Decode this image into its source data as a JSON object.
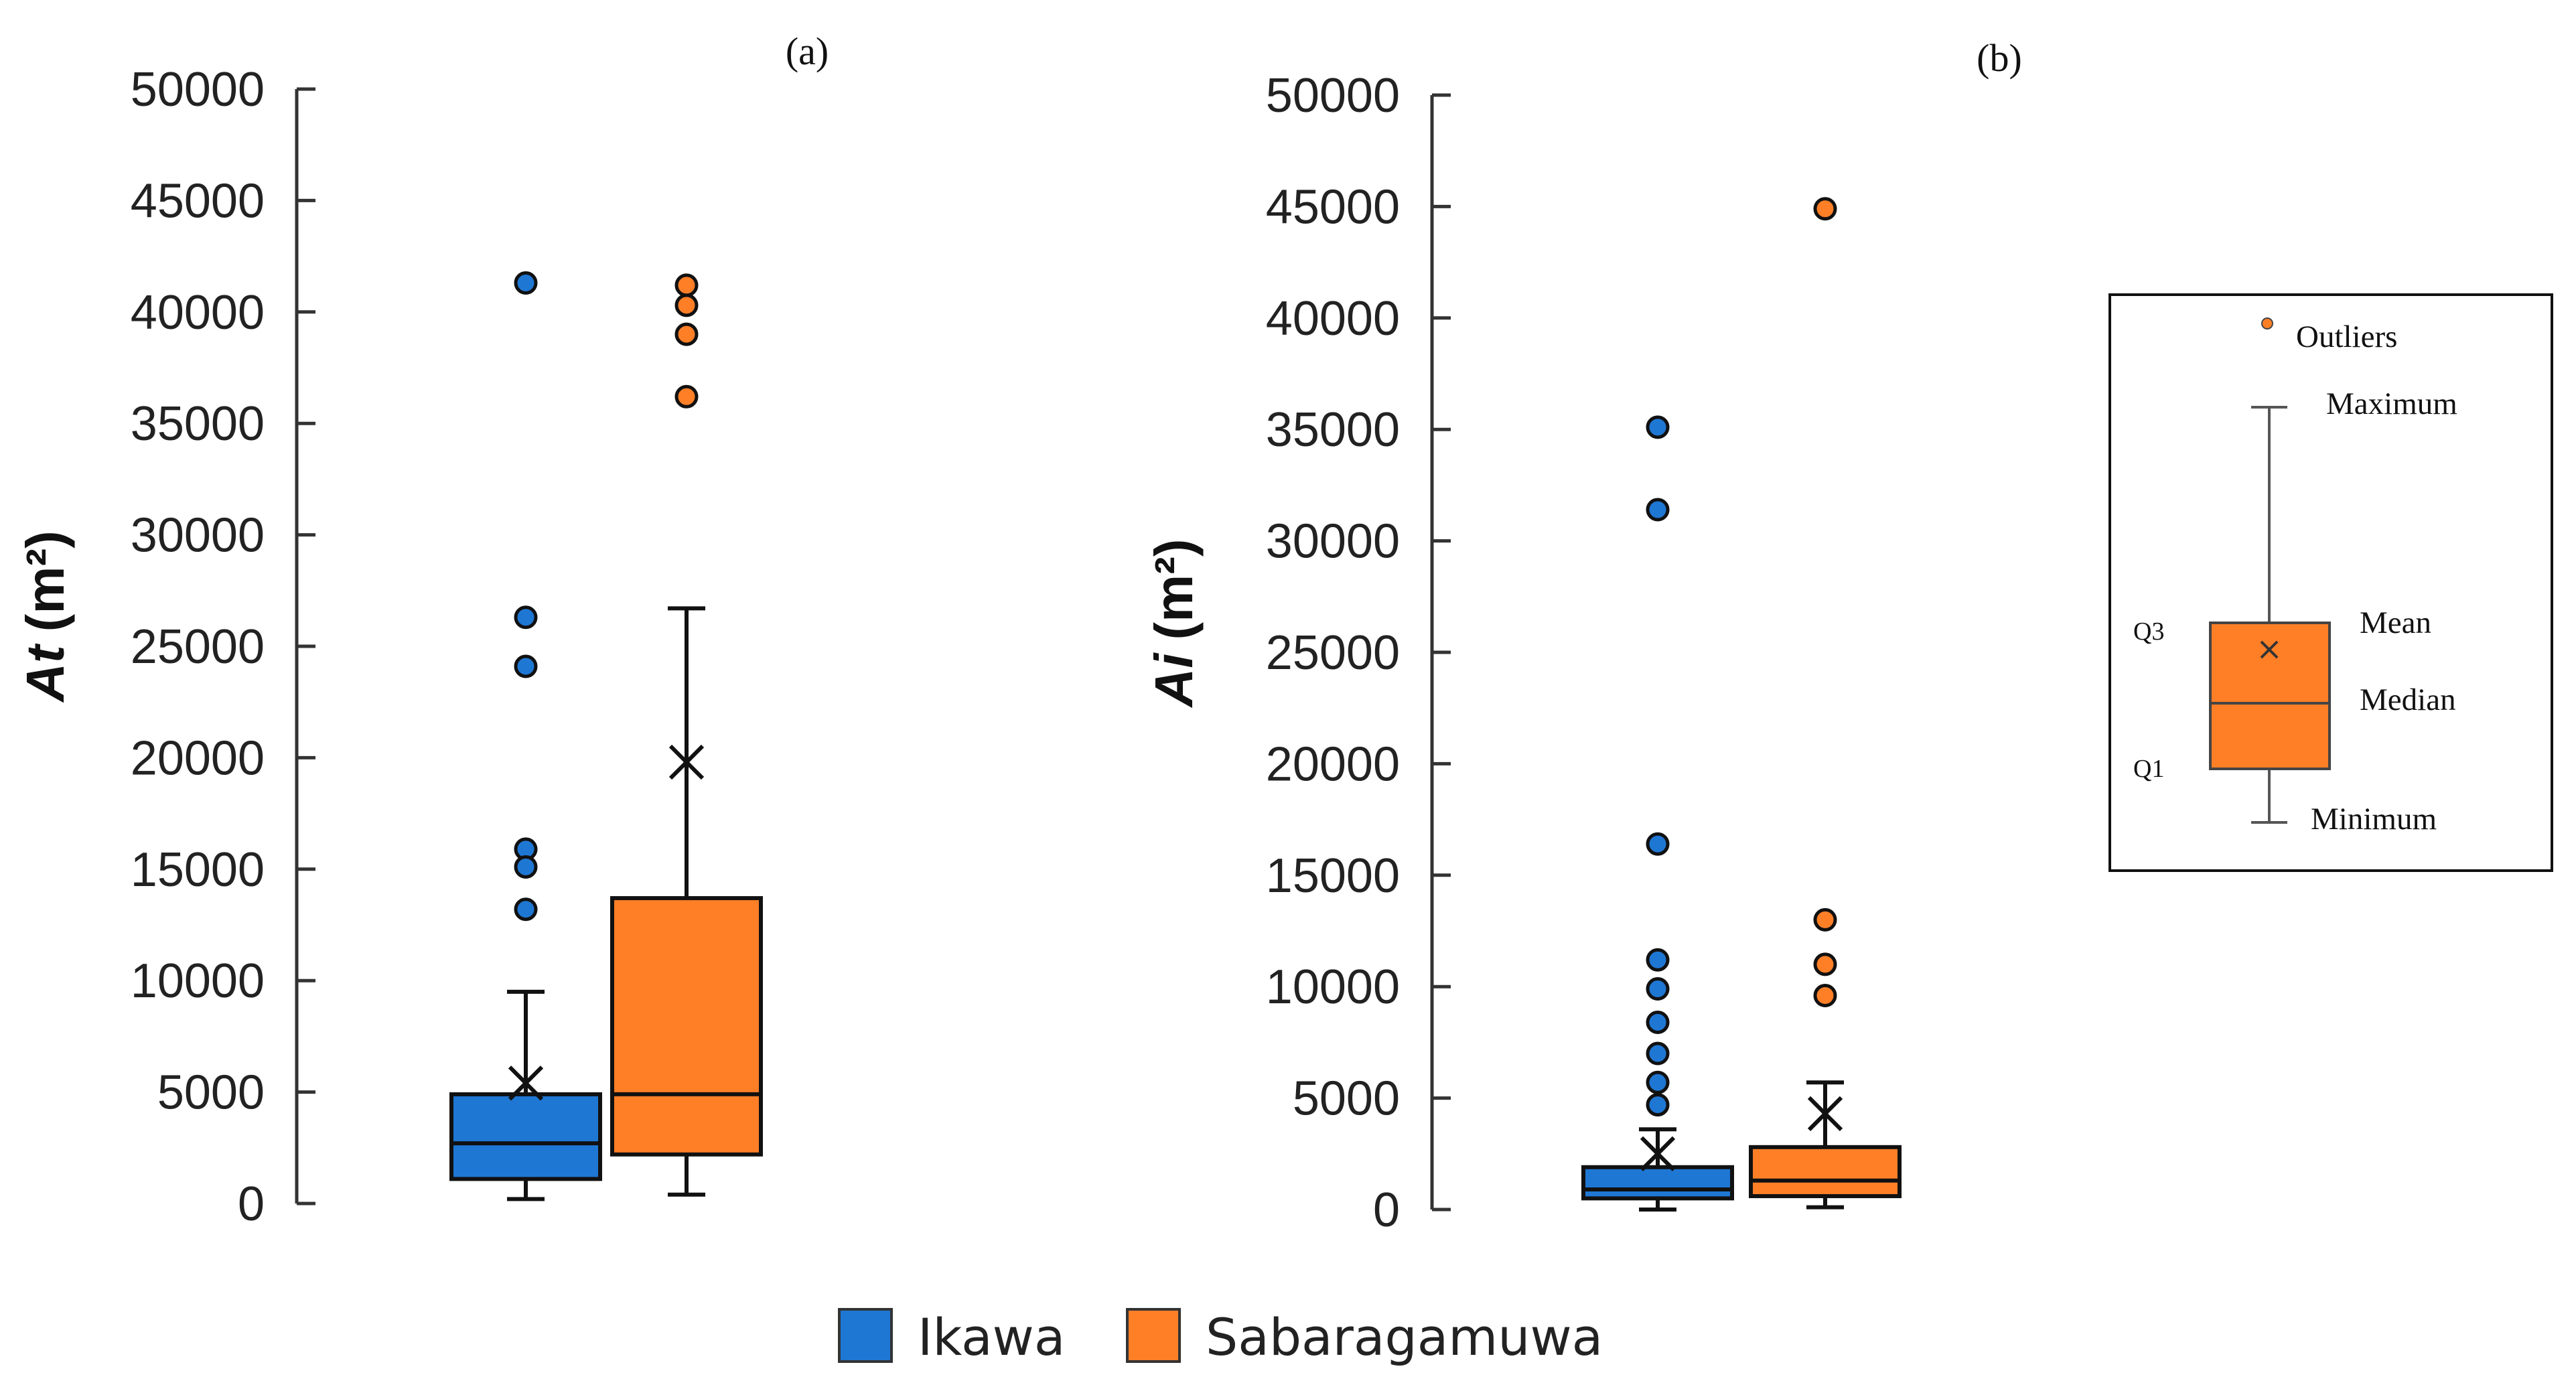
{
  "chart_data": [
    {
      "type": "box",
      "panel": "(a)",
      "ylabel": "At (m²)",
      "ylabel_main": "At",
      "ylabel_unit": "(m²)",
      "ylim": [
        0,
        50000
      ],
      "yticks": [
        0,
        5000,
        10000,
        15000,
        20000,
        25000,
        30000,
        35000,
        40000,
        45000,
        50000
      ],
      "ytick_labels": [
        "0",
        "5000",
        "10000",
        "15000",
        "20000",
        "25000",
        "30000",
        "35000",
        "40000",
        "45000",
        "50000"
      ],
      "series": [
        {
          "name": "Ikawa",
          "min": 200,
          "q1": 1100,
          "median": 2700,
          "q3": 4900,
          "max": 9500,
          "mean": 5400,
          "outliers": [
            41300,
            26300,
            24100,
            15900,
            15100,
            13200
          ]
        },
        {
          "name": "Sabaragamuwa",
          "min": 400,
          "q1": 2200,
          "median": 4900,
          "q3": 13700,
          "max": 26700,
          "mean": 19800,
          "outliers": [
            41200,
            40300,
            39000,
            36200
          ]
        }
      ]
    },
    {
      "type": "box",
      "panel": "(b)",
      "ylabel": "Ai (m²)",
      "ylabel_main": "Ai",
      "ylabel_unit": "(m²)",
      "ylim": [
        0,
        50000
      ],
      "yticks": [
        0,
        5000,
        10000,
        15000,
        20000,
        25000,
        30000,
        35000,
        40000,
        45000,
        50000
      ],
      "ytick_labels": [
        "0",
        "5000",
        "10000",
        "15000",
        "20000",
        "25000",
        "30000",
        "35000",
        "40000",
        "45000",
        "50000"
      ],
      "series": [
        {
          "name": "Ikawa",
          "min": 0,
          "q1": 500,
          "median": 900,
          "q3": 1900,
          "max": 3600,
          "mean": 2500,
          "outliers": [
            35100,
            31400,
            16400,
            11200,
            9900,
            8400,
            7000,
            5700,
            4700
          ]
        },
        {
          "name": "Sabaragamuwa",
          "min": 100,
          "q1": 600,
          "median": 1300,
          "q3": 2800,
          "max": 5700,
          "mean": 4300,
          "outliers": [
            44900,
            13000,
            11000,
            9600
          ]
        }
      ]
    }
  ],
  "colors": {
    "Ikawa": "#1f77d4",
    "Sabaragamuwa": "#ff7f27",
    "axis": "#333333"
  },
  "key_legend": {
    "outliers": "Outliers",
    "maximum": "Maximum",
    "q3": "Q3",
    "mean": "Mean",
    "median": "Median",
    "q1": "Q1",
    "minimum": "Minimum"
  },
  "series_legend": [
    {
      "name": "Ikawa",
      "color": "#1f77d4"
    },
    {
      "name": "Sabaragamuwa",
      "color": "#ff7f27"
    }
  ]
}
